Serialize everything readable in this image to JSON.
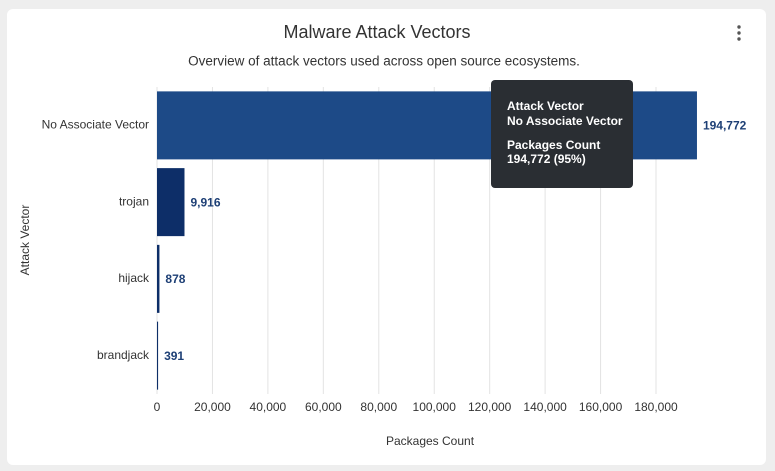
{
  "chart_data": {
    "type": "hbar",
    "title": "Malware Attack Vectors",
    "subtitle": "Overview of attack vectors used across open source ecosystems.",
    "y_label": "Attack Vector",
    "x_label": "Packages Count",
    "categories": [
      "No Associate Vector",
      "trojan",
      "hijack",
      "brandjack"
    ],
    "values": [
      194772,
      9916,
      878,
      391
    ],
    "value_labels": [
      "194,772",
      "9,916",
      "878",
      "391"
    ],
    "colors": [
      "#1d4a87",
      "#0d2e68",
      "#0d2e68",
      "#0d2e68"
    ],
    "xlim": [
      0,
      195000
    ],
    "xticks": [
      0,
      {
        "value": 20000,
        "label": "20,000"
      },
      {
        "value": 40000,
        "label": "40,000"
      },
      {
        "value": 60000,
        "label": "60,000"
      },
      {
        "value": 80000,
        "label": "80,000"
      },
      {
        "value": 100000,
        "label": "100,000"
      },
      {
        "value": 120000,
        "label": "120,000"
      },
      {
        "value": 140000,
        "label": "140,000"
      },
      {
        "value": 160000,
        "label": "160,000"
      },
      {
        "value": 180000,
        "label": "180,000"
      }
    ],
    "grid": true,
    "tooltip": {
      "category_label": "Attack Vector",
      "category": "No Associate Vector",
      "value_label": "Packages Count",
      "value": "194,772 (95%)"
    }
  }
}
